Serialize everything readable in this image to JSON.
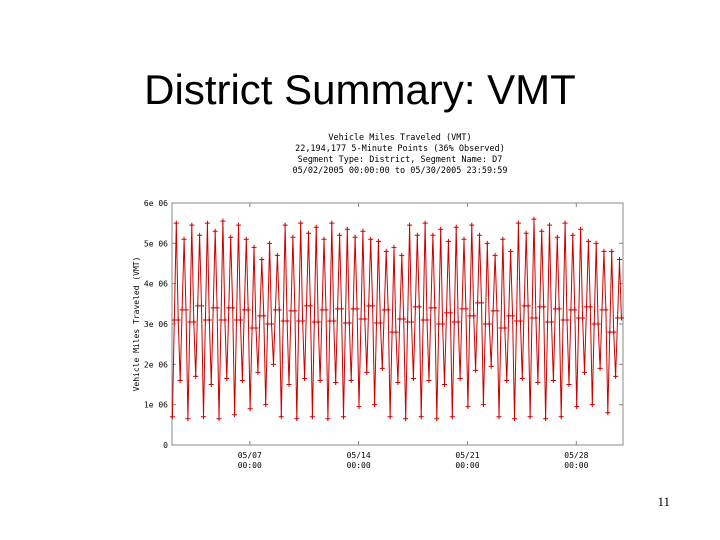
{
  "slide": {
    "title": "District Summary: VMT",
    "page_number": "11"
  },
  "chart_data": {
    "type": "line",
    "title_lines": [
      "Vehicle Miles Traveled (VMT)",
      "22,194,177 5-Minute Points (36% Observed)",
      "Segment Type: District, Segment Name: D7",
      "05/02/2005 00:00:00 to 05/30/2005 23:59:59"
    ],
    "ylabel": "Vehicle Miles Traveled (VMT)",
    "xlabel": "",
    "ylim": [
      0,
      6000000
    ],
    "x_range_days": [
      0,
      29
    ],
    "y_ticks": [
      {
        "value": 0,
        "label": "0"
      },
      {
        "value": 1000000,
        "label": "1e 06"
      },
      {
        "value": 2000000,
        "label": "2e 06"
      },
      {
        "value": 3000000,
        "label": "3e 06"
      },
      {
        "value": 4000000,
        "label": "4e 06"
      },
      {
        "value": 5000000,
        "label": "5e 06"
      },
      {
        "value": 6000000,
        "label": "6e 06"
      }
    ],
    "x_ticks": [
      {
        "day": 5,
        "line1": "05/07",
        "line2": "00:00"
      },
      {
        "day": 12,
        "line1": "05/14",
        "line2": "00:00"
      },
      {
        "day": 19,
        "line1": "05/21",
        "line2": "00:00"
      },
      {
        "day": 26,
        "line1": "05/28",
        "line2": "00:00"
      }
    ],
    "series": [
      {
        "color": "#cc0000",
        "cycles_per_day": 2,
        "days": 29,
        "peak_values": [
          5500000,
          5100000,
          5450000,
          5200000,
          5500000,
          5300000,
          5550000,
          5150000,
          5450000,
          5100000,
          4900000,
          4600000,
          5000000,
          4700000,
          5450000,
          5150000,
          5500000,
          5250000,
          5400000,
          5100000,
          5500000,
          5200000,
          5350000,
          5150000,
          5300000,
          5100000,
          5050000,
          4800000,
          4900000,
          4700000,
          5450000,
          5200000,
          5500000,
          5200000,
          5350000,
          5050000,
          5400000,
          5100000,
          5450000,
          5200000,
          5000000,
          4700000,
          5100000,
          4800000,
          5500000,
          5250000,
          5600000,
          5300000,
          5450000,
          5150000,
          5500000,
          5200000,
          5350000,
          5050000,
          5000000,
          4800000,
          4800000,
          4600000
        ],
        "trough_values": [
          700000,
          1600000,
          650000,
          1700000,
          700000,
          1500000,
          650000,
          1650000,
          750000,
          1600000,
          900000,
          1800000,
          1000000,
          2000000,
          700000,
          1500000,
          650000,
          1650000,
          700000,
          1600000,
          650000,
          1550000,
          700000,
          1600000,
          950000,
          1800000,
          1000000,
          1900000,
          700000,
          1550000,
          650000,
          1650000,
          700000,
          1600000,
          650000,
          1500000,
          700000,
          1650000,
          950000,
          1850000,
          1000000,
          1950000,
          700000,
          1600000,
          650000,
          1650000,
          700000,
          1550000,
          650000,
          1600000,
          700000,
          1500000,
          950000,
          1800000,
          1000000,
          1900000,
          800000,
          1700000
        ]
      }
    ],
    "grid": false,
    "legend": "none"
  }
}
